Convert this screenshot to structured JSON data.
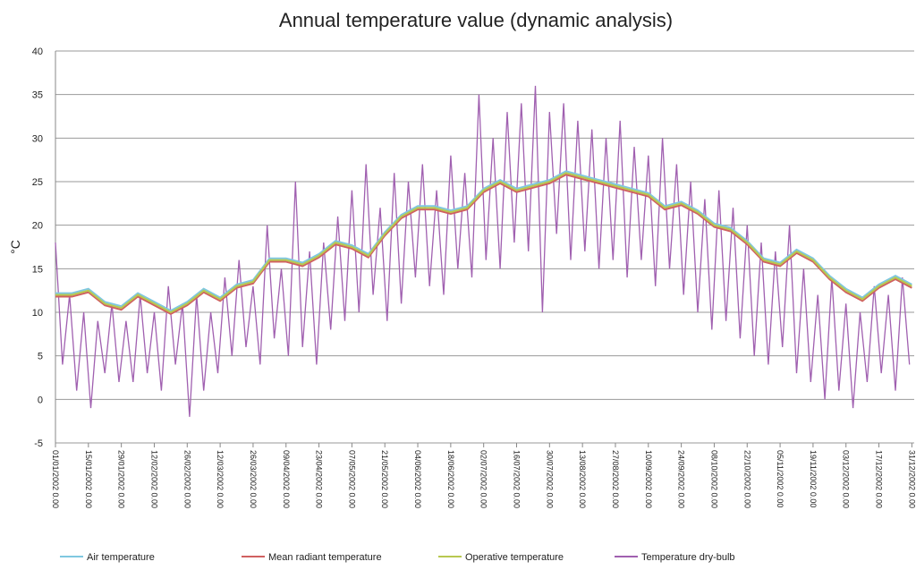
{
  "chart_data": {
    "type": "line",
    "title": "Annual temperature value (dynamic analysis)",
    "y_label": "°C",
    "grid": true,
    "legend": "bottom",
    "xlim": [
      0,
      365
    ],
    "ylim": [
      -5,
      40
    ],
    "yticks": [
      -5,
      0,
      5,
      10,
      15,
      20,
      25,
      30,
      35,
      40
    ],
    "xticks": [
      {
        "value": 0,
        "label": "01/01/2002 0.00"
      },
      {
        "value": 14,
        "label": "15/01/2002 0.00"
      },
      {
        "value": 28,
        "label": "29/01/2002 0.00"
      },
      {
        "value": 42,
        "label": "12/02/2002 0.00"
      },
      {
        "value": 56,
        "label": "26/02/2002 0.00"
      },
      {
        "value": 70,
        "label": "12/03/2002 0.00"
      },
      {
        "value": 84,
        "label": "26/03/2002 0.00"
      },
      {
        "value": 98,
        "label": "09/04/2002 0.00"
      },
      {
        "value": 112,
        "label": "23/04/2002 0.00"
      },
      {
        "value": 126,
        "label": "07/05/2002 0.00"
      },
      {
        "value": 140,
        "label": "21/05/2002 0.00"
      },
      {
        "value": 154,
        "label": "04/06/2002 0.00"
      },
      {
        "value": 168,
        "label": "18/06/2002 0.00"
      },
      {
        "value": 182,
        "label": "02/07/2002 0.00"
      },
      {
        "value": 196,
        "label": "16/07/2002 0.00"
      },
      {
        "value": 210,
        "label": "30/07/2002 0.00"
      },
      {
        "value": 224,
        "label": "13/08/2002 0.00"
      },
      {
        "value": 238,
        "label": "27/08/2002 0.00"
      },
      {
        "value": 252,
        "label": "10/09/2002 0.00"
      },
      {
        "value": 266,
        "label": "24/09/2002 0.00"
      },
      {
        "value": 280,
        "label": "08/10/2002 0.00"
      },
      {
        "value": 294,
        "label": "22/10/2002 0.00"
      },
      {
        "value": 308,
        "label": "05/11/2002 0.00"
      },
      {
        "value": 322,
        "label": "19/11/2002 0.00"
      },
      {
        "value": 336,
        "label": "03/12/2002 0.00"
      },
      {
        "value": 350,
        "label": "17/12/2002 0.00"
      },
      {
        "value": 364,
        "label": "31/12/2002 0.00"
      }
    ],
    "series": [
      {
        "name": "Temperature dry-bulb",
        "color": "#a060b0",
        "x": [
          0,
          3,
          6,
          9,
          12,
          15,
          18,
          21,
          24,
          27,
          30,
          33,
          36,
          39,
          42,
          45,
          48,
          51,
          54,
          57,
          60,
          63,
          66,
          69,
          72,
          75,
          78,
          81,
          84,
          87,
          90,
          93,
          96,
          99,
          102,
          105,
          108,
          111,
          114,
          117,
          120,
          123,
          126,
          129,
          132,
          135,
          138,
          141,
          144,
          147,
          150,
          153,
          156,
          159,
          162,
          165,
          168,
          171,
          174,
          177,
          180,
          183,
          186,
          189,
          192,
          195,
          198,
          201,
          204,
          207,
          210,
          213,
          216,
          219,
          222,
          225,
          228,
          231,
          234,
          237,
          240,
          243,
          246,
          249,
          252,
          255,
          258,
          261,
          264,
          267,
          270,
          273,
          276,
          279,
          282,
          285,
          288,
          291,
          294,
          297,
          300,
          303,
          306,
          309,
          312,
          315,
          318,
          321,
          324,
          327,
          330,
          333,
          336,
          339,
          342,
          345,
          348,
          351,
          354,
          357,
          360,
          363
        ],
        "values": [
          18,
          4,
          12,
          1,
          10,
          -1,
          9,
          3,
          11,
          2,
          9,
          2,
          12,
          3,
          10,
          1,
          13,
          4,
          11,
          -2,
          12,
          1,
          10,
          3,
          14,
          5,
          16,
          6,
          13,
          4,
          20,
          7,
          15,
          5,
          25,
          6,
          17,
          4,
          18,
          8,
          21,
          9,
          24,
          10,
          27,
          12,
          22,
          9,
          26,
          11,
          25,
          14,
          27,
          13,
          24,
          12,
          28,
          15,
          26,
          14,
          35,
          16,
          30,
          15,
          33,
          18,
          34,
          17,
          36,
          10,
          33,
          19,
          34,
          16,
          32,
          17,
          31,
          15,
          30,
          16,
          32,
          14,
          29,
          16,
          28,
          13,
          30,
          15,
          27,
          12,
          25,
          10,
          23,
          8,
          24,
          9,
          22,
          7,
          20,
          5,
          18,
          4,
          17,
          6,
          20,
          3,
          15,
          2,
          12,
          0,
          14,
          1,
          11,
          -1,
          10,
          2,
          13,
          3,
          12,
          1,
          14,
          4
        ]
      },
      {
        "name": "Air temperature",
        "color": "#7fc8e0",
        "x": [
          0,
          7,
          14,
          21,
          28,
          35,
          42,
          49,
          56,
          63,
          70,
          77,
          84,
          91,
          98,
          105,
          112,
          119,
          126,
          133,
          140,
          147,
          154,
          161,
          168,
          175,
          182,
          189,
          196,
          203,
          210,
          217,
          224,
          231,
          238,
          245,
          252,
          259,
          266,
          273,
          280,
          287,
          294,
          301,
          308,
          315,
          322,
          329,
          336,
          343,
          350,
          357,
          364
        ],
        "values": [
          12.2,
          12.2,
          12.7,
          11.2,
          10.7,
          12.2,
          11.2,
          10.2,
          11.2,
          12.7,
          11.7,
          13.2,
          13.7,
          16.2,
          16.2,
          15.7,
          16.7,
          18.2,
          17.7,
          16.7,
          19.2,
          21.2,
          22.2,
          22.2,
          21.7,
          22.2,
          24.2,
          25.2,
          24.2,
          24.7,
          25.2,
          26.2,
          25.7,
          25.2,
          24.7,
          24.2,
          23.7,
          22.2,
          22.7,
          21.7,
          20.2,
          19.7,
          18.2,
          16.2,
          15.7,
          17.2,
          16.2,
          14.2,
          12.7,
          11.7,
          13.2,
          14.2,
          13.2
        ]
      },
      {
        "name": "Mean radiant temperature",
        "color": "#d06060",
        "x": [
          0,
          7,
          14,
          21,
          28,
          35,
          42,
          49,
          56,
          63,
          70,
          77,
          84,
          91,
          98,
          105,
          112,
          119,
          126,
          133,
          140,
          147,
          154,
          161,
          168,
          175,
          182,
          189,
          196,
          203,
          210,
          217,
          224,
          231,
          238,
          245,
          252,
          259,
          266,
          273,
          280,
          287,
          294,
          301,
          308,
          315,
          322,
          329,
          336,
          343,
          350,
          357,
          364
        ],
        "values": [
          11.8,
          11.8,
          12.3,
          10.8,
          10.3,
          11.8,
          10.8,
          9.8,
          10.8,
          12.3,
          11.3,
          12.8,
          13.3,
          15.8,
          15.8,
          15.3,
          16.3,
          17.8,
          17.3,
          16.3,
          18.8,
          20.8,
          21.8,
          21.8,
          21.3,
          21.8,
          23.8,
          24.8,
          23.8,
          24.3,
          24.8,
          25.8,
          25.3,
          24.8,
          24.3,
          23.8,
          23.3,
          21.8,
          22.3,
          21.3,
          19.8,
          19.3,
          17.8,
          15.8,
          15.3,
          16.8,
          15.8,
          13.8,
          12.3,
          11.3,
          12.8,
          13.8,
          12.8
        ]
      },
      {
        "name": "Operative temperature",
        "color": "#b8c850",
        "x": [
          0,
          7,
          14,
          21,
          28,
          35,
          42,
          49,
          56,
          63,
          70,
          77,
          84,
          91,
          98,
          105,
          112,
          119,
          126,
          133,
          140,
          147,
          154,
          161,
          168,
          175,
          182,
          189,
          196,
          203,
          210,
          217,
          224,
          231,
          238,
          245,
          252,
          259,
          266,
          273,
          280,
          287,
          294,
          301,
          308,
          315,
          322,
          329,
          336,
          343,
          350,
          357,
          364
        ],
        "values": [
          12,
          12,
          12.5,
          11,
          10.5,
          12,
          11,
          10,
          11,
          12.5,
          11.5,
          13,
          13.5,
          16,
          16,
          15.5,
          16.5,
          18,
          17.5,
          16.5,
          19,
          21,
          22,
          22,
          21.5,
          22,
          24,
          25,
          24,
          24.5,
          25,
          26,
          25.5,
          25,
          24.5,
          24,
          23.5,
          22,
          22.5,
          21.5,
          20,
          19.5,
          18,
          16,
          15.5,
          17,
          16,
          14,
          12.5,
          11.5,
          13,
          14,
          13
        ]
      }
    ]
  }
}
